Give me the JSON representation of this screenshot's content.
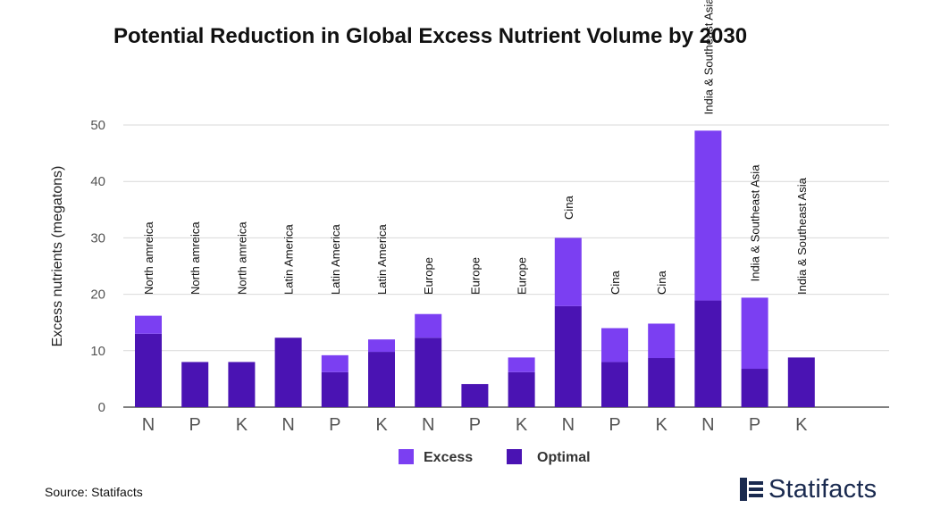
{
  "title": "Potential Reduction in Global Excess Nutrient Volume by 2030",
  "source": "Source: Statifacts",
  "brand": "Statifacts",
  "colors": {
    "excess": "#7b3ff2",
    "optimal": "#4a13b3",
    "grid": "#d9d9d9",
    "brand": "#1a2a4f"
  },
  "chart_data": {
    "type": "bar",
    "stacked": true,
    "categories": [
      "N",
      "P",
      "K",
      "N",
      "P",
      "K",
      "N",
      "P",
      "K",
      "N",
      "P",
      "K",
      "N",
      "P",
      "K"
    ],
    "group_labels": [
      "North amreica",
      "North amreica",
      "North amreica",
      "Latin America",
      "Latin America",
      "Latin America",
      "Europe",
      "Europe",
      "Europe",
      "Cina",
      "Cina",
      "Cina",
      "India & Southeast Asia",
      "India & Southeast Asia",
      "India & Southeast Asia"
    ],
    "series": [
      {
        "name": "Optimal",
        "values": [
          13,
          8,
          8,
          12.3,
          6.2,
          9.8,
          12.3,
          4.1,
          6.2,
          17.9,
          8,
          8.7,
          18.9,
          6.8,
          8.8
        ]
      },
      {
        "name": "Excess",
        "values": [
          3.2,
          0,
          0,
          0,
          3,
          2.2,
          4.2,
          0,
          2.6,
          12.1,
          6,
          6.1,
          30.1,
          12.6,
          0
        ]
      }
    ],
    "ylabel": "Excess nutrients (megatons)",
    "xlabel": "",
    "ylim": [
      0,
      50
    ],
    "yticks": [
      0,
      10,
      20,
      30,
      40,
      50
    ],
    "legend": [
      "Excess",
      "Optimal"
    ],
    "legend_position": "bottom",
    "grid": true
  }
}
